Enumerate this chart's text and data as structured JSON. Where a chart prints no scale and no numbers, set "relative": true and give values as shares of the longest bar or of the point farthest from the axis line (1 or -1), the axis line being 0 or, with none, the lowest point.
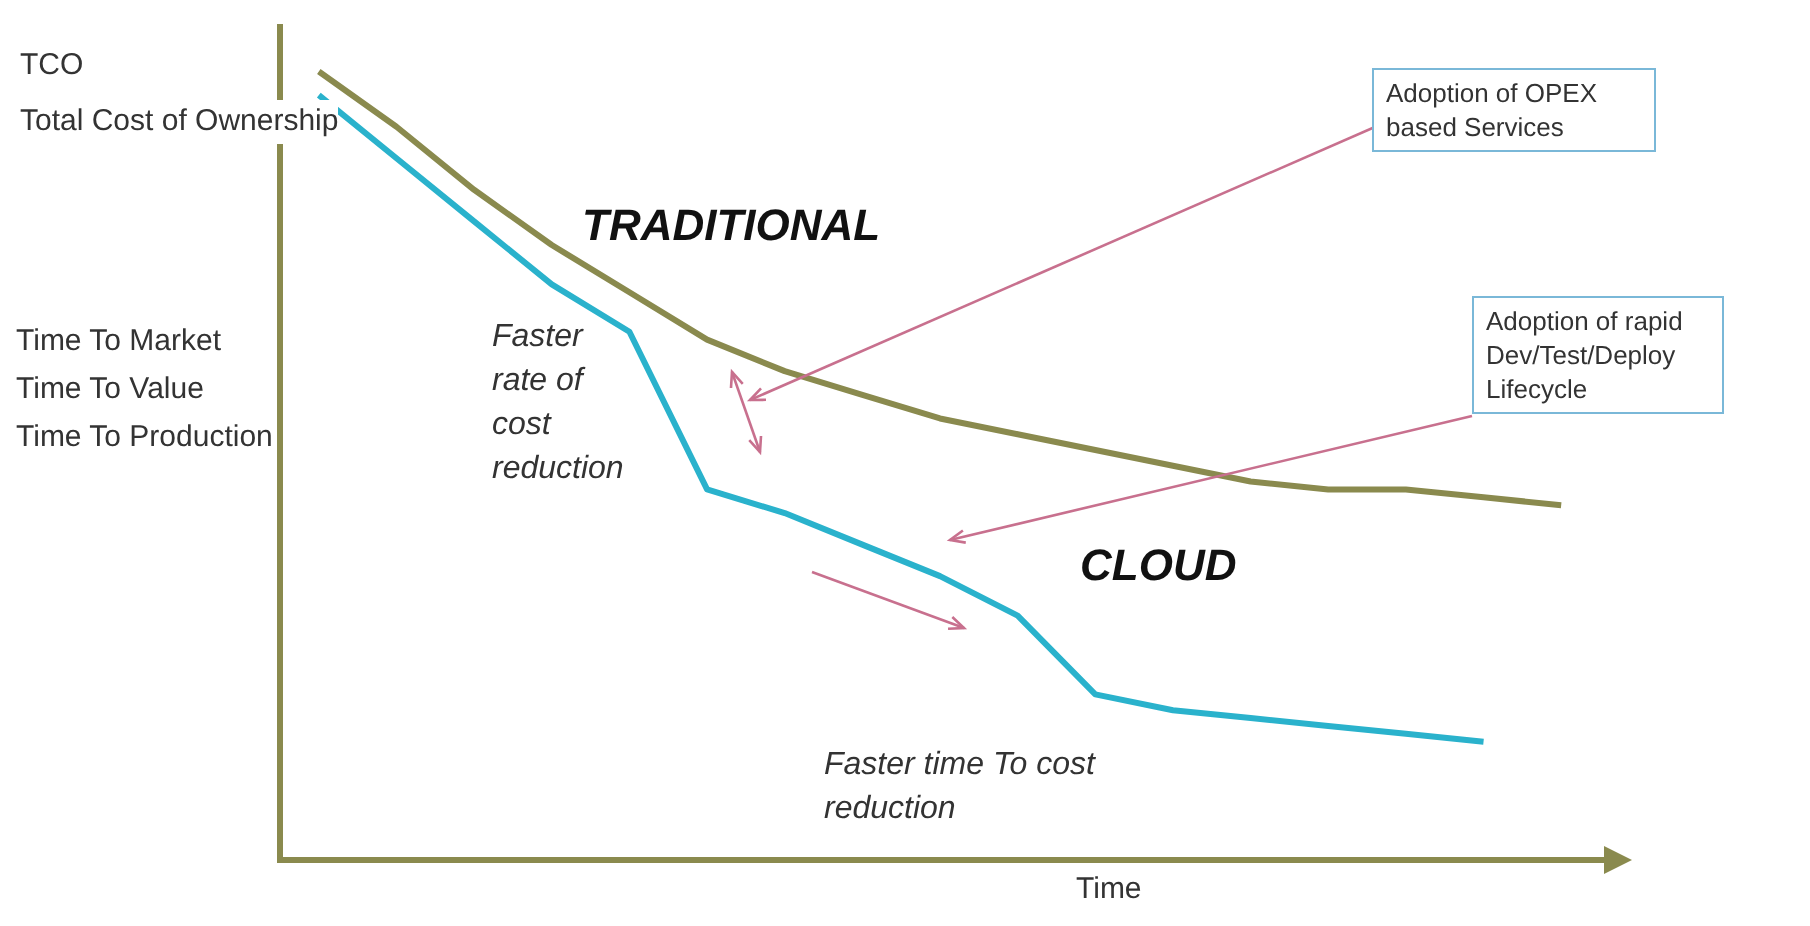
{
  "chart_data": {
    "type": "line",
    "relative": true,
    "xlabel": "Time",
    "categories": [
      null,
      null,
      null,
      null,
      null,
      null,
      null,
      null,
      null,
      null,
      null,
      null,
      null,
      null,
      null,
      null,
      null
    ],
    "series": [
      {
        "name": "TRADITIONAL",
        "color": "#8a8a4e",
        "values": [
          1.0,
          0.93,
          0.85,
          0.78,
          0.72,
          0.66,
          0.62,
          0.59,
          0.56,
          0.54,
          0.52,
          0.5,
          0.48,
          0.47,
          0.47,
          0.46,
          0.45
        ]
      },
      {
        "name": "CLOUD",
        "color": "#2ab2cc",
        "values": [
          0.97,
          0.89,
          0.81,
          0.73,
          0.67,
          0.47,
          0.44,
          0.4,
          0.36,
          0.31,
          0.21,
          0.19,
          0.18,
          0.17,
          0.16,
          0.15,
          null
        ]
      }
    ],
    "annotations": [
      "TCO",
      "Total Cost of Ownership",
      "Time To Market",
      "Time To Value",
      "Time To Production",
      "Adoption of OPEX based Services",
      "Adoption of rapid Dev/Test/Deploy Lifecycle",
      "Faster rate of cost reduction",
      "Faster time To cost reduction"
    ],
    "grid": false,
    "legend": false,
    "marker": "none",
    "line_style": "solid"
  }
}
